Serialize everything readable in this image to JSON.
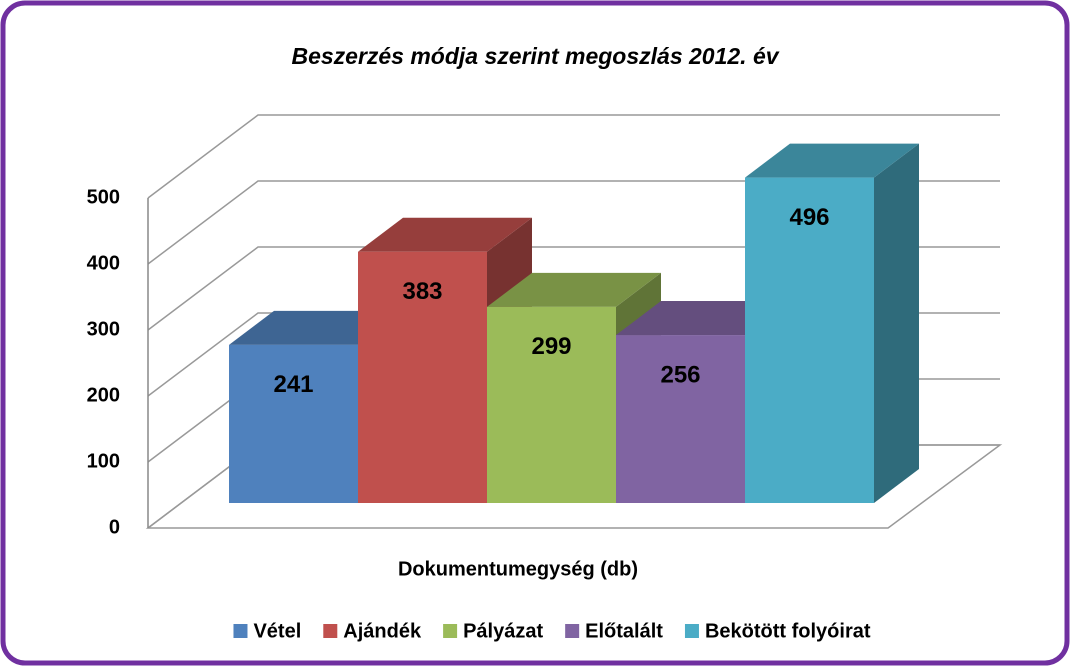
{
  "chart_data": {
    "type": "bar3d",
    "title": "Beszerzés módja szerint megoszlás 2012. év",
    "categories": [
      "Dokumentumegység (db)"
    ],
    "series": [
      {
        "name": "Vétel",
        "color": "#4f81bd",
        "values": [
          241
        ]
      },
      {
        "name": "Ajándék",
        "color": "#c0504d",
        "values": [
          383
        ]
      },
      {
        "name": "Pályázat",
        "color": "#9bbb59",
        "values": [
          299
        ]
      },
      {
        "name": "Előtalált",
        "color": "#8064a2",
        "values": [
          256
        ]
      },
      {
        "name": "Bekötött folyóirat",
        "color": "#4bacc6",
        "values": [
          496
        ]
      }
    ],
    "ylim": [
      0,
      500
    ],
    "yticks": [
      0,
      100,
      200,
      300,
      400,
      500
    ],
    "grid": true,
    "legend": "bottom"
  }
}
